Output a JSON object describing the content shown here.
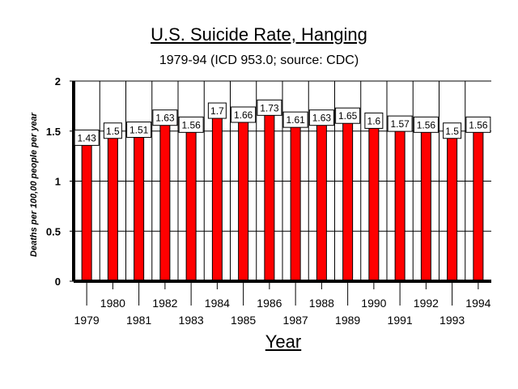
{
  "chart_data": {
    "type": "bar",
    "title": "U.S. Suicide Rate, Hanging",
    "subtitle": "1979-94 (ICD 953.0; source: CDC)",
    "xlabel": "Year",
    "ylabel": "Deaths per 100,00 people per year",
    "categories": [
      "1979",
      "1980",
      "1981",
      "1982",
      "1983",
      "1984",
      "1985",
      "1986",
      "1987",
      "1988",
      "1989",
      "1990",
      "1991",
      "1992",
      "1993",
      "1994"
    ],
    "values": [
      1.43,
      1.5,
      1.51,
      1.63,
      1.56,
      1.7,
      1.66,
      1.73,
      1.61,
      1.63,
      1.65,
      1.6,
      1.57,
      1.56,
      1.5,
      1.56
    ],
    "data_labels": [
      "1.43",
      "1.5",
      "1.51",
      "1.63",
      "1.56",
      "1.7",
      "1.66",
      "1.73",
      "1.61",
      "1.63",
      "1.65",
      "1.6",
      "1.57",
      "1.56",
      "1.5",
      "1.56"
    ],
    "yticks": [
      "0",
      "0.5",
      "1",
      "1.5",
      "2"
    ],
    "ylim": [
      0,
      2
    ],
    "grid": true,
    "legend": "none",
    "bar_color": "#ff0000"
  }
}
